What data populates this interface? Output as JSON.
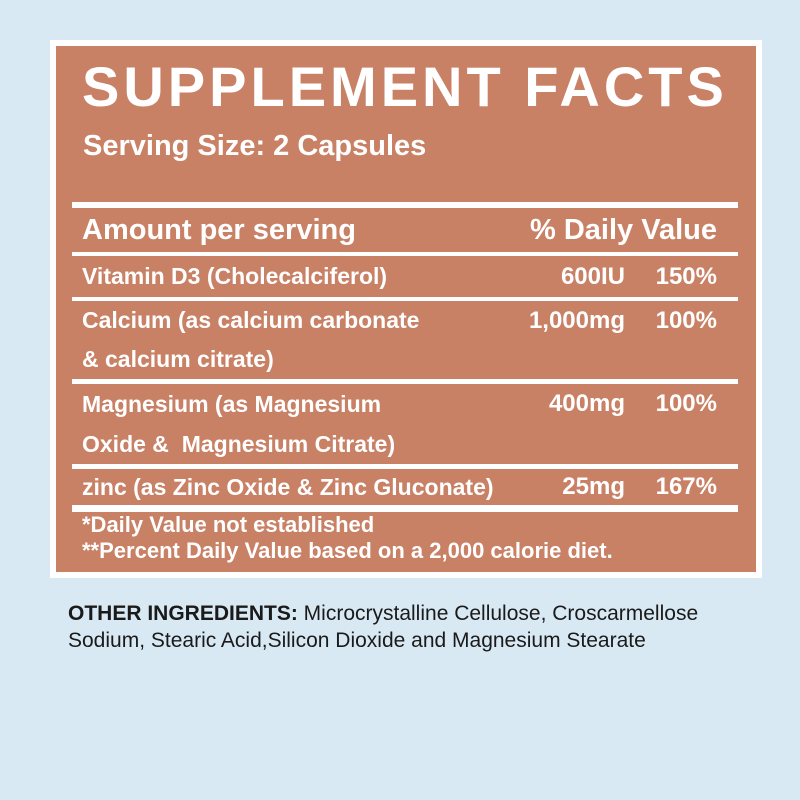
{
  "colors": {
    "page_background": "#d8e9f4",
    "panel_background": "#c98166",
    "panel_border": "#ffffff",
    "panel_text": "#ffffff",
    "body_text": "#1a1a1a"
  },
  "panel": {
    "title": "SUPPLEMENT FACTS",
    "serving_size": "Serving Size: 2 Capsules",
    "header": {
      "amount_label": "Amount per serving",
      "daily_value_label": "% Daily Value"
    },
    "rows": [
      {
        "name": "Vitamin D3 (Cholecalciferol)",
        "name2": "",
        "amount": "600IU",
        "dv": "150%"
      },
      {
        "name": "Calcium (as calcium carbonate",
        "name2": "& calcium citrate)",
        "amount": "1,000mg",
        "dv": "100%"
      },
      {
        "name": "Magnesium (as Magnesium",
        "name2": "Oxide &  Magnesium Citrate)",
        "amount": "400mg",
        "dv": "100%"
      },
      {
        "name": "zinc (as Zinc Oxide & Zinc Gluconate)",
        "name2": "",
        "amount": "25mg",
        "dv": "167%"
      }
    ],
    "footnotes": [
      "*Daily Value not established",
      "**Percent Daily Value based on a 2,000 calorie diet."
    ]
  },
  "other_ingredients": {
    "label": "OTHER INGREDIENTS:",
    "text": " Microcrystalline Cellulose, Croscarmellose Sodium, Stearic Acid,Silicon Dioxide and Magnesium Stearate"
  }
}
